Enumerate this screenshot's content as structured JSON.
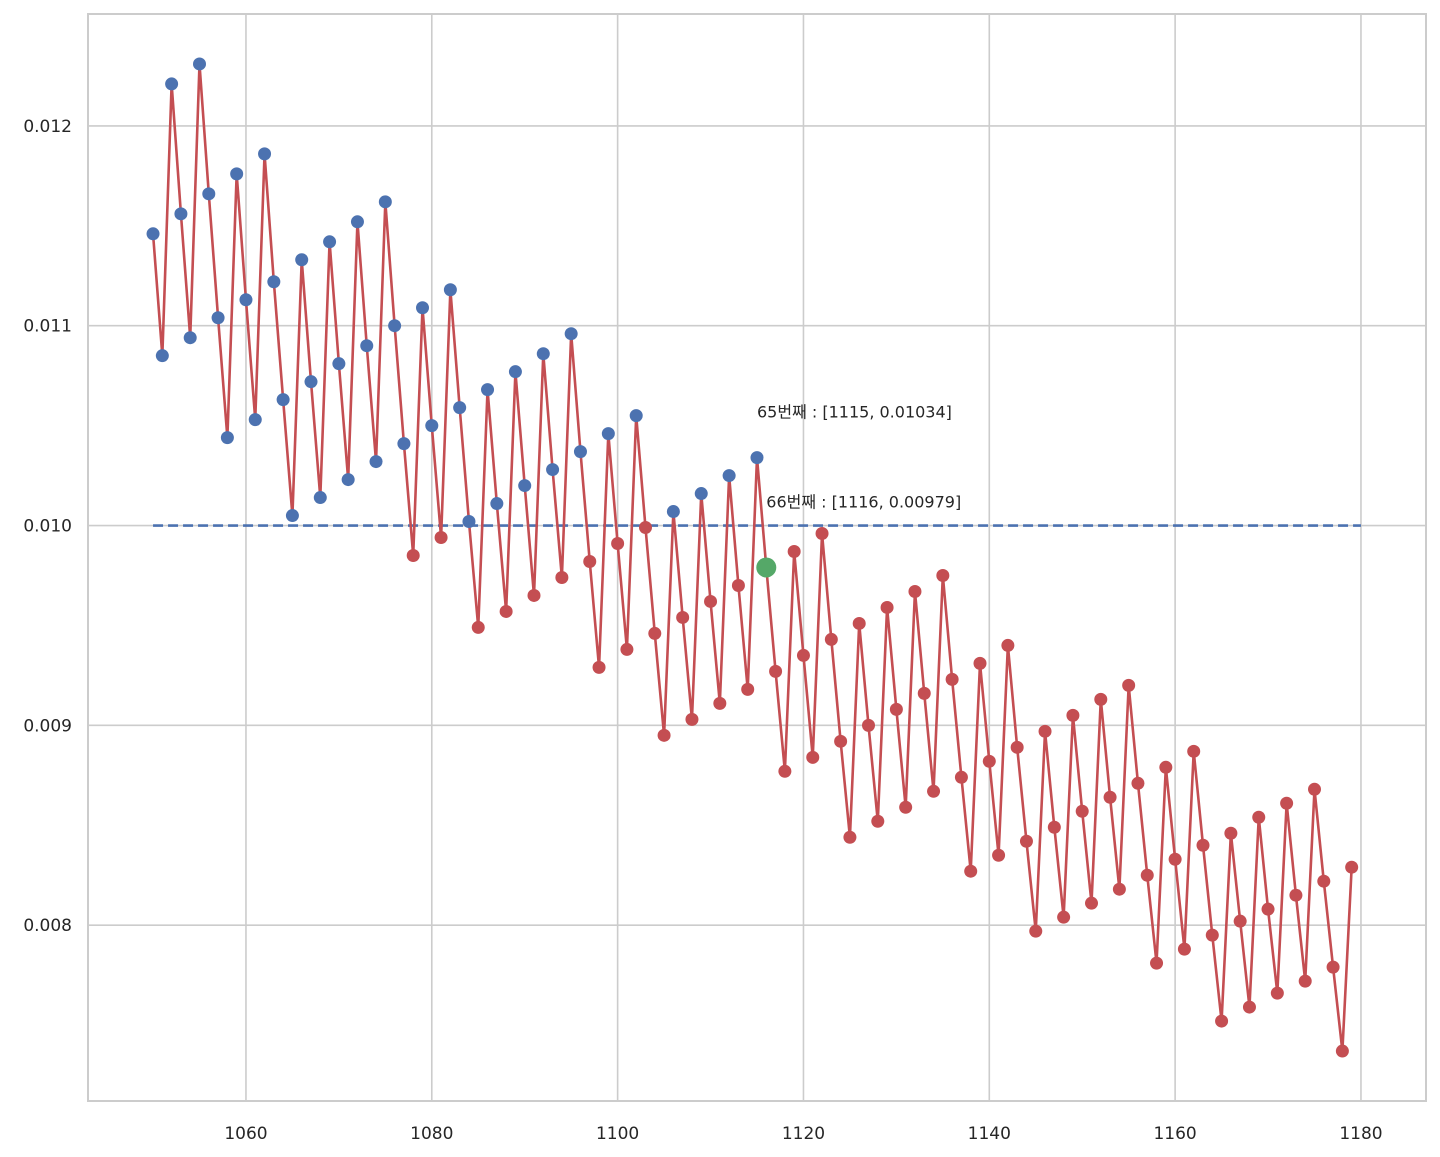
{
  "chart_data": {
    "type": "line",
    "title": "",
    "xlabel": "",
    "ylabel": "",
    "xlim": [
      1043,
      1187
    ],
    "ylim": [
      0.00712,
      0.01256
    ],
    "xticks": [
      1060,
      1080,
      1100,
      1120,
      1140,
      1160,
      1180
    ],
    "yticks": [
      0.008,
      0.009,
      0.01,
      0.011,
      0.012
    ],
    "ytick_labels": [
      "0.008",
      "0.009",
      "0.010",
      "0.011",
      "0.012"
    ],
    "grid": true,
    "threshold": {
      "y": 0.01,
      "x_start": 1050,
      "x_end": 1180,
      "color": "#4c72b0",
      "style": "dashed"
    },
    "colors": {
      "line": "#c44e52",
      "above": "#4c72b0",
      "below": "#c44e52",
      "highlight": "#55a868"
    },
    "series": [
      {
        "x": [
          1050,
          1051,
          1052,
          1053,
          1054,
          1055,
          1056,
          1057,
          1058,
          1059,
          1060,
          1061,
          1062,
          1063,
          1064,
          1065,
          1066,
          1067,
          1068,
          1069,
          1070,
          1071,
          1072,
          1073,
          1074,
          1075,
          1076,
          1077,
          1078,
          1079,
          1080,
          1081,
          1082,
          1083,
          1084,
          1085,
          1086,
          1087,
          1088,
          1089,
          1090,
          1091,
          1092,
          1093,
          1094,
          1095,
          1096,
          1097,
          1098,
          1099,
          1100,
          1101,
          1102,
          1103,
          1104,
          1105,
          1106,
          1107,
          1108,
          1109,
          1110,
          1111,
          1112,
          1113,
          1114,
          1115,
          1116,
          1117,
          1118,
          1119,
          1120,
          1121,
          1122,
          1123,
          1124,
          1125,
          1126,
          1127,
          1128,
          1129,
          1130,
          1131,
          1132,
          1133,
          1134,
          1135,
          1136,
          1137,
          1138,
          1139,
          1140,
          1141,
          1142,
          1143,
          1144,
          1145,
          1146,
          1147,
          1148,
          1149,
          1150,
          1151,
          1152,
          1153,
          1154,
          1155,
          1156,
          1157,
          1158,
          1159,
          1160,
          1161,
          1162,
          1163,
          1164,
          1165,
          1166,
          1167,
          1168,
          1169,
          1170,
          1171,
          1172,
          1173,
          1174,
          1175,
          1176,
          1177,
          1178,
          1179
        ],
        "y": [
          0.01146,
          0.01085,
          0.01221,
          0.01156,
          0.01094,
          0.01231,
          0.01166,
          0.01104,
          0.01044,
          0.01176,
          0.01113,
          0.01053,
          0.01186,
          0.01122,
          0.01063,
          0.01005,
          0.01133,
          0.01072,
          0.01014,
          0.01142,
          0.01081,
          0.01023,
          0.01152,
          0.0109,
          0.01032,
          0.01162,
          0.011,
          0.01041,
          0.00985,
          0.01109,
          0.0105,
          0.00994,
          0.01118,
          0.01059,
          0.01002,
          0.00949,
          0.01068,
          0.01011,
          0.00957,
          0.01077,
          0.0102,
          0.00965,
          0.01086,
          0.01028,
          0.00974,
          0.01096,
          0.01037,
          0.00982,
          0.00929,
          0.01046,
          0.00991,
          0.00938,
          0.01055,
          0.00999,
          0.00946,
          0.00895,
          0.01007,
          0.00954,
          0.00903,
          0.01016,
          0.00962,
          0.00911,
          0.01025,
          0.0097,
          0.00918,
          0.01034,
          0.00979,
          0.00927,
          0.00877,
          0.00987,
          0.00935,
          0.00884,
          0.00996,
          0.00943,
          0.00892,
          0.00844,
          0.00951,
          0.009,
          0.00852,
          0.00959,
          0.00908,
          0.00859,
          0.00967,
          0.00916,
          0.00867,
          0.00975,
          0.00923,
          0.00874,
          0.00827,
          0.00931,
          0.00882,
          0.00835,
          0.0094,
          0.00889,
          0.00842,
          0.00797,
          0.00897,
          0.00849,
          0.00804,
          0.00905,
          0.00857,
          0.00811,
          0.00913,
          0.00864,
          0.00818,
          0.0092,
          0.00871,
          0.00825,
          0.00781,
          0.00879,
          0.00833,
          0.00788,
          0.00887,
          0.0084,
          0.00795,
          0.00752,
          0.00846,
          0.00802,
          0.00759,
          0.00854,
          0.00808,
          0.00766,
          0.00861,
          0.00815,
          0.00772,
          0.00868,
          0.00822,
          0.00779,
          0.00737,
          0.00829
        ]
      }
    ],
    "highlight": {
      "x": 1116,
      "y": 0.00979
    },
    "annotations": [
      {
        "text": "65번째 : [1115, 0.01034]",
        "x": 1115,
        "y": 0.01054
      },
      {
        "text": "66번째 : [1116, 0.00979]",
        "x": 1116,
        "y": 0.01009
      }
    ]
  }
}
